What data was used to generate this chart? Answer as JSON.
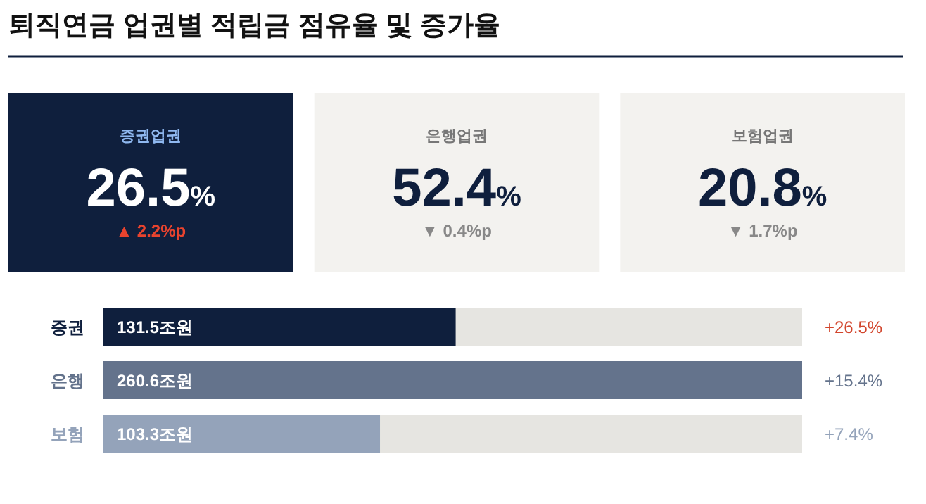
{
  "chart_data": [
    {
      "type": "other",
      "title": "퇴직연금 업권별 적립금 점유율 및 증가율",
      "categories": [
        "증권업권",
        "은행업권",
        "보험업권"
      ],
      "value_labels": [
        "26.5%",
        "52.4%",
        "20.8%"
      ],
      "colors": [
        "#0f1f3d",
        "#f3f2ef",
        "#f3f2ef"
      ],
      "annotations": [
        "▲ 2.2%p",
        "▼ 0.4%p",
        "▼ 1.7%p"
      ]
    },
    {
      "type": "bar",
      "orientation": "horizontal",
      "categories": [
        "증권",
        "은행",
        "보험"
      ],
      "values": [
        131.5,
        260.6,
        103.3
      ],
      "value_labels": [
        "131.5조원",
        "260.6조원",
        "103.3조원"
      ],
      "colors": [
        "#0f1f3d",
        "#64738c",
        "#94a3ba"
      ],
      "annotations": [
        "+26.5%",
        "+15.4%",
        "+7.4%"
      ]
    }
  ]
}
